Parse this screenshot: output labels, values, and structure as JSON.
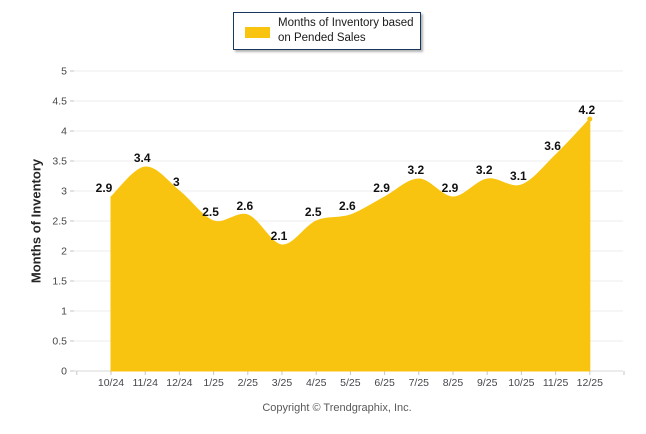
{
  "legend": {
    "line1": "Months of Inventory based",
    "line2": "on Pended Sales"
  },
  "y_axis_title": "Months of Inventory",
  "footer": {
    "copyright": "Copyright © Trendgraphix, Inc."
  },
  "colors": {
    "area_fill": "#F8C410",
    "gridline": "#ECECEC",
    "axis_line": "#D9D9D9",
    "tick": "#C6C6C6",
    "axis_text": "#45474D",
    "label_text": "#111111",
    "legend_border": "#17375E",
    "copyright_text": "#595959"
  },
  "chart_data": {
    "type": "area",
    "smooth": true,
    "categories": [
      "10/24",
      "11/24",
      "12/24",
      "1/25",
      "2/25",
      "3/25",
      "4/25",
      "5/25",
      "6/25",
      "7/25",
      "8/25",
      "9/25",
      "10/25",
      "11/25",
      "12/25"
    ],
    "values": [
      2.9,
      3.4,
      3,
      2.5,
      2.6,
      2.1,
      2.5,
      2.6,
      2.9,
      3.2,
      2.9,
      3.2,
      3.1,
      3.6,
      4.2
    ],
    "series_name": "Months of Inventory based on Pended Sales",
    "title": "",
    "xlabel": "",
    "ylabel": "Months of Inventory",
    "ylim": [
      0,
      5
    ],
    "ytick_step": 0.5,
    "grid": true,
    "legend_position": "top-center",
    "data_labels": true,
    "last_point_marker": true
  }
}
